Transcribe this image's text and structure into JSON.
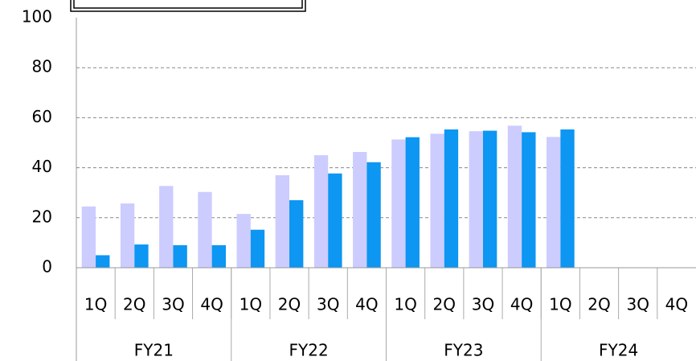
{
  "chart_data": {
    "type": "bar",
    "categories": [
      "1Q",
      "2Q",
      "3Q",
      "4Q",
      "1Q",
      "2Q",
      "3Q",
      "4Q",
      "1Q",
      "2Q",
      "3Q",
      "4Q",
      "1Q",
      "2Q",
      "3Q",
      "4Q"
    ],
    "groups": [
      "FY21",
      "FY22",
      "FY23",
      "FY24"
    ],
    "series": [
      {
        "color": "#ccccff",
        "values": [
          24.5,
          25.7,
          32.7,
          30.3,
          21.5,
          37,
          45,
          46.3,
          51.3,
          53.6,
          54.6,
          56.8,
          52.3,
          null,
          null,
          null
        ]
      },
      {
        "color": "#0d96f2",
        "values": [
          5,
          9.3,
          9,
          9,
          15.2,
          27,
          37.7,
          42.2,
          52.2,
          55.3,
          54.8,
          54.2,
          55.3,
          null,
          null,
          null
        ]
      }
    ],
    "ylim": [
      0,
      100
    ],
    "yticks": [
      0,
      20,
      40,
      60,
      80,
      100
    ],
    "grid": true
  }
}
